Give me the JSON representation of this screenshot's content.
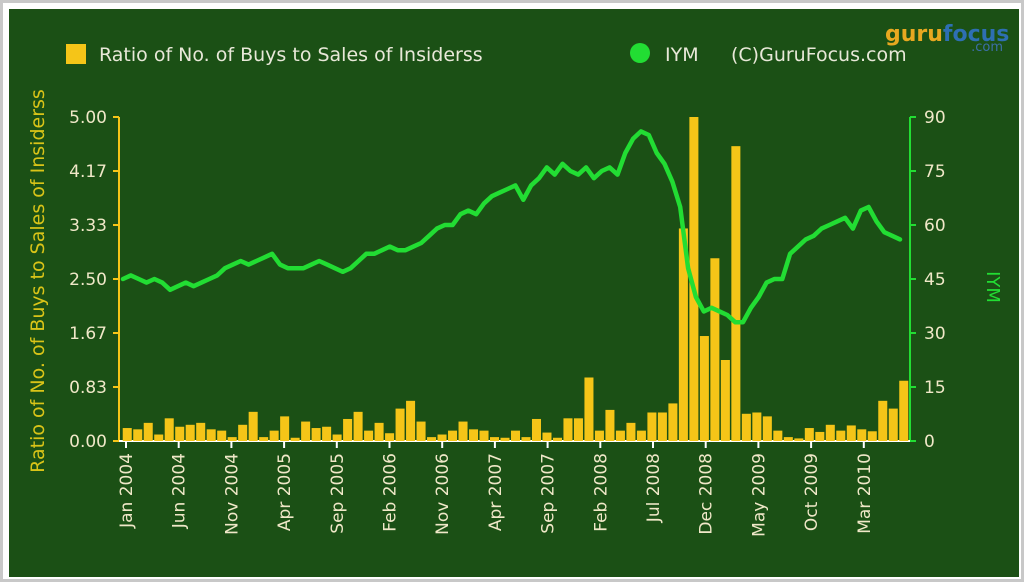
{
  "chart_data": {
    "type": "bar+line",
    "legend": {
      "placement": "top",
      "items": [
        {
          "label": "Ratio of No. of Buys to Sales of Insiderss",
          "color": "#f5c518",
          "marker": "square"
        },
        {
          "label": "IYM",
          "color": "#22dd33",
          "marker": "circle"
        }
      ],
      "credit": "(C)GuruFocus.com"
    },
    "watermark": {
      "part1": "guru",
      "part2": "focus",
      "suffix": ".com"
    },
    "y_left": {
      "label": "Ratio of No. of Buys to Sales of Insiderss",
      "ticks": [
        "0.00",
        "0.83",
        "1.67",
        "2.50",
        "3.33",
        "4.17",
        "5.00"
      ],
      "range": [
        0,
        5
      ],
      "color": "#f5c518"
    },
    "y_right": {
      "label": "IYM",
      "ticks": [
        "0",
        "15",
        "30",
        "45",
        "60",
        "75",
        "90"
      ],
      "range": [
        0,
        90
      ],
      "color": "#22dd33"
    },
    "x_axis": {
      "labels": [
        "Jan 2004",
        "Jun 2004",
        "Nov 2004",
        "Apr 2005",
        "Sep 2005",
        "Feb 2006",
        "Nov 2006",
        "Apr 2007",
        "Sep 2007",
        "Feb 2008",
        "Jul 2008",
        "Dec 2008",
        "May 2009",
        "Oct 2009",
        "Mar 2010"
      ],
      "start": "2004-01",
      "end": "2010-10"
    },
    "grid": false,
    "series": [
      {
        "name": "Ratio of No. of Buys to Sales of Insiderss",
        "type": "bar",
        "color": "#f5c518",
        "values": [
          0.2,
          0.18,
          0.28,
          0.1,
          0.35,
          0.22,
          0.25,
          0.28,
          0.18,
          0.16,
          0.06,
          0.25,
          0.45,
          0.06,
          0.16,
          0.38,
          0.05,
          0.3,
          0.2,
          0.22,
          0.1,
          0.34,
          0.45,
          0.16,
          0.28,
          0.12,
          0.5,
          0.62,
          0.3,
          0.06,
          0.1,
          0.16,
          0.3,
          0.18,
          0.16,
          0.06,
          0.05,
          0.16,
          0.06,
          0.34,
          0.13,
          0.05,
          0.35,
          0.35,
          0.98,
          0.16,
          0.48,
          0.16,
          0.28,
          0.16,
          0.44,
          0.44,
          0.58,
          3.28,
          5.0,
          1.62,
          2.82,
          1.25,
          4.55,
          0.42,
          0.44,
          0.38,
          0.16,
          0.06,
          0.04,
          0.2,
          0.14,
          0.25,
          0.16,
          0.24,
          0.18,
          0.15,
          0.62,
          0.5,
          0.93
        ]
      },
      {
        "name": "IYM",
        "type": "line",
        "color": "#22dd33",
        "values": [
          45,
          46,
          45,
          44,
          45,
          44,
          42,
          43,
          44,
          43,
          44,
          45,
          46,
          48,
          49,
          50,
          49,
          50,
          51,
          52,
          49,
          48,
          48,
          48,
          49,
          50,
          49,
          48,
          47,
          48,
          50,
          52,
          52,
          53,
          54,
          53,
          53,
          54,
          55,
          57,
          59,
          60,
          60,
          63,
          64,
          63,
          66,
          68,
          69,
          70,
          71,
          67,
          71,
          73,
          76,
          74,
          77,
          75,
          74,
          76,
          73,
          75,
          76,
          74,
          80,
          84,
          86,
          85,
          80,
          77,
          72,
          65,
          48,
          40,
          36,
          37,
          36,
          35,
          33,
          33,
          37,
          40,
          44,
          45,
          45,
          52,
          54,
          56,
          57,
          59,
          60,
          61,
          62,
          59,
          64,
          65,
          61,
          58,
          57,
          56
        ]
      }
    ]
  }
}
